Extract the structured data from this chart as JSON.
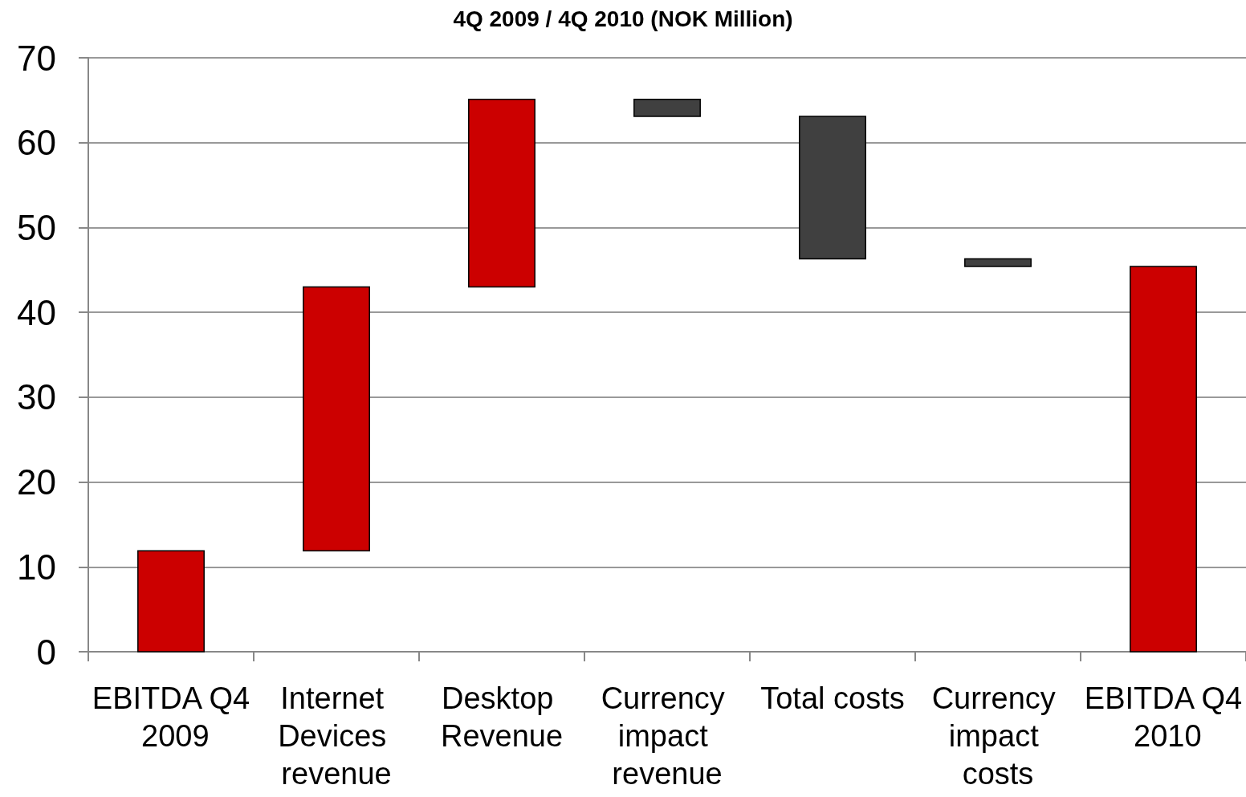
{
  "chart_data": {
    "type": "bar",
    "title": "4Q 2009 / 4Q 2010 (NOK Million)",
    "categories": [
      "EBITDA Q4 2009",
      "Internet Devices revenue",
      "Desktop Revenue",
      "Currency impact revenue",
      "Total costs",
      "Currency impact costs",
      "EBITDA Q4 2010"
    ],
    "values": [
      11.9,
      31.1,
      22.1,
      2,
      16.8,
      0.9,
      45.4
    ],
    "base": [
      0,
      11.9,
      43,
      63.1,
      46.3,
      45.4,
      0
    ],
    "colors": [
      "#cc0000",
      "#cc0000",
      "#cc0000",
      "#404040",
      "#404040",
      "#404040",
      "#cc0000"
    ],
    "ylim": [
      0,
      70
    ],
    "yticks": [
      0,
      10,
      20,
      30,
      40,
      50,
      60,
      70
    ],
    "grid": "y"
  }
}
